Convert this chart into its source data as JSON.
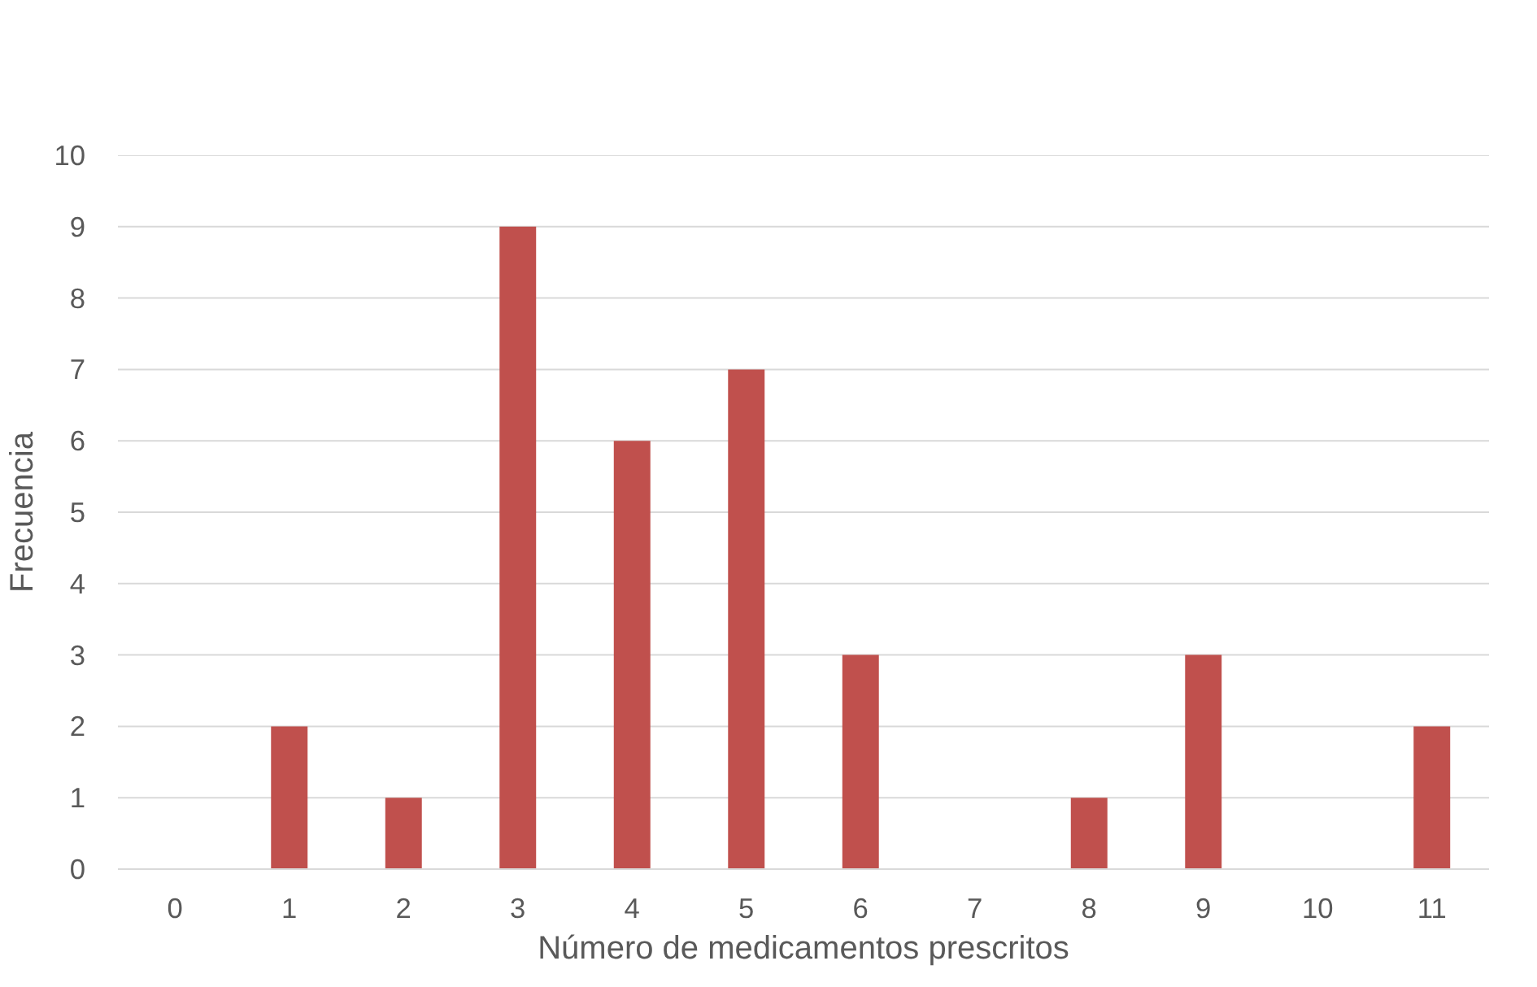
{
  "chart_data": {
    "type": "bar",
    "xlabel": "Número de medicamentos prescritos",
    "ylabel": "Frecuencia",
    "categories": [
      "0",
      "1",
      "2",
      "3",
      "4",
      "5",
      "6",
      "7",
      "8",
      "9",
      "10",
      "11"
    ],
    "values": [
      0,
      2,
      1,
      9,
      6,
      7,
      3,
      0,
      1,
      3,
      0,
      2
    ],
    "color": "#c0504d",
    "ylim": [
      0,
      10
    ],
    "yticks": [
      0,
      1,
      2,
      3,
      4,
      5,
      6,
      7,
      8,
      9,
      10
    ],
    "grid": "y"
  }
}
